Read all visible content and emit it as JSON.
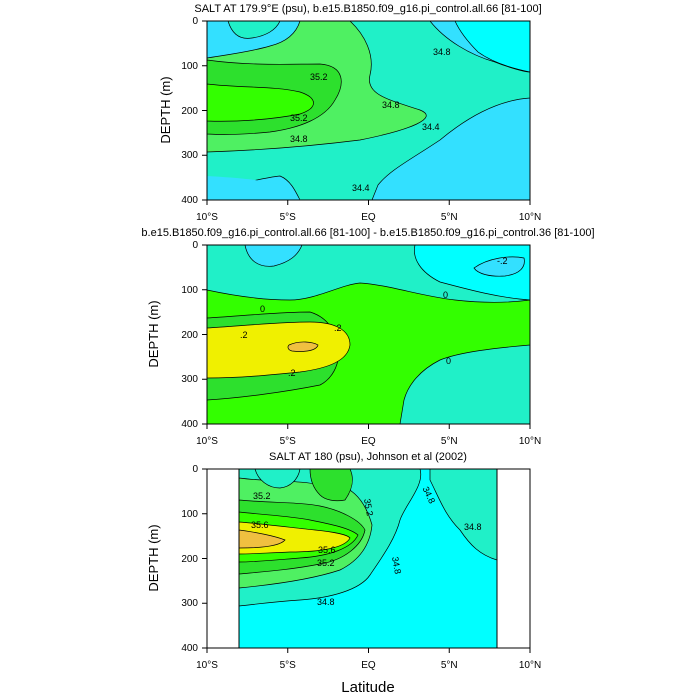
{
  "chart_data": [
    {
      "type": "contour",
      "title": "SALT AT 179.9°E (psu), b.e15.B1850.f09_g16.pi_control.all.66 [81-100]",
      "ylabel": "DEPTH (m)",
      "xticks": [
        "10°S",
        "5°S",
        "EQ",
        "5°N",
        "10°N"
      ],
      "yticks": [
        "0",
        "100",
        "200",
        "300",
        "400"
      ],
      "xlim": [
        -10,
        10
      ],
      "ylim": [
        400,
        0
      ],
      "contour_labels": [
        "35.2",
        "35.2",
        "34.8",
        "34.8",
        "34.8",
        "34.4",
        "34.4"
      ]
    },
    {
      "type": "contour",
      "title": "b.e15.B1850.f09_g16.pi_control.all.66 [81-100] - b.e15.B1850.f09_g16.pi_control.36 [81-100]",
      "ylabel": "DEPTH (m)",
      "xticks": [
        "10°S",
        "5°S",
        "EQ",
        "5°N",
        "10°N"
      ],
      "yticks": [
        "0",
        "100",
        "200",
        "300",
        "400"
      ],
      "xlim": [
        -10,
        10
      ],
      "ylim": [
        400,
        0
      ],
      "contour_labels": [
        "-.2",
        "0",
        "0",
        "0",
        ".2",
        ".2",
        ".2"
      ]
    },
    {
      "type": "contour",
      "title": "SALT AT 180 (psu), Johnson et al (2002)",
      "ylabel": "DEPTH (m)",
      "xlabel": "Latitude",
      "xticks": [
        "10°S",
        "5°S",
        "EQ",
        "5°N",
        "10°N"
      ],
      "yticks": [
        "0",
        "100",
        "200",
        "300",
        "400"
      ],
      "xlim": [
        -10,
        10
      ],
      "ylim": [
        400,
        0
      ],
      "data_xlim": [
        -8,
        8
      ],
      "contour_labels": [
        "35.2",
        "35.2",
        "34.8",
        "34.8",
        "34.8",
        "35.6",
        "35.6",
        "35.2",
        "34.8"
      ]
    }
  ],
  "colors": {
    "cyan": "#33e0ff",
    "aqua": "#00ffff",
    "teal": "#20f0c8",
    "lgreen": "#4ff062",
    "green": "#2de02d",
    "green2": "#33ff00",
    "yellow": "#f0f000",
    "orange": "#f0c040"
  }
}
